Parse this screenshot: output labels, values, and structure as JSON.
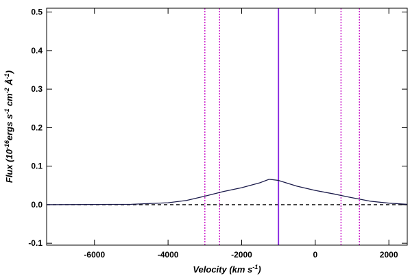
{
  "chart_data": {
    "type": "line",
    "xlabel": [
      "Velocity (km s",
      "-1",
      ")"
    ],
    "ylabel": [
      "Flux (10",
      "-16",
      "ergs s",
      "-1",
      " cm",
      "-2",
      " Å",
      "-1",
      ")"
    ],
    "xlim": [
      -7300,
      2500
    ],
    "ylim": [
      -0.105,
      0.51
    ],
    "xticks": [
      -6000,
      -4000,
      -2000,
      0,
      2000
    ],
    "yticks": [
      -0.1,
      {
        "value": 0,
        "label": "0.0"
      },
      0.1,
      0.2,
      0.3,
      0.4,
      0.5
    ],
    "series": [
      {
        "color": "#1a1a4a",
        "x": [
          -7300,
          -5000,
          -4000,
          -3500,
          -3000,
          -2500,
          -2000,
          -1500,
          -1250,
          -1000,
          -800,
          -500,
          0,
          500,
          1000,
          1500,
          2000,
          2500
        ],
        "values": [
          0,
          0.001,
          0.005,
          0.011,
          0.022,
          0.034,
          0.044,
          0.057,
          0.066,
          0.063,
          0.057,
          0.048,
          0.037,
          0.028,
          0.018,
          0.009,
          0.004,
          0.001
        ]
      }
    ],
    "hlines": [
      {
        "y": 0,
        "color": "#000000",
        "dash": "5,4"
      }
    ],
    "vlines": [
      {
        "x": -3000,
        "color": "#cc22cc",
        "dash": "2,2"
      },
      {
        "x": -2600,
        "color": "#cc22cc",
        "dash": "2,2"
      },
      {
        "x": -1000,
        "color": "#8a2be2",
        "dash": "none"
      },
      {
        "x": 700,
        "color": "#cc22cc",
        "dash": "2,2"
      },
      {
        "x": 1200,
        "color": "#cc22cc",
        "dash": "2,2"
      }
    ]
  }
}
